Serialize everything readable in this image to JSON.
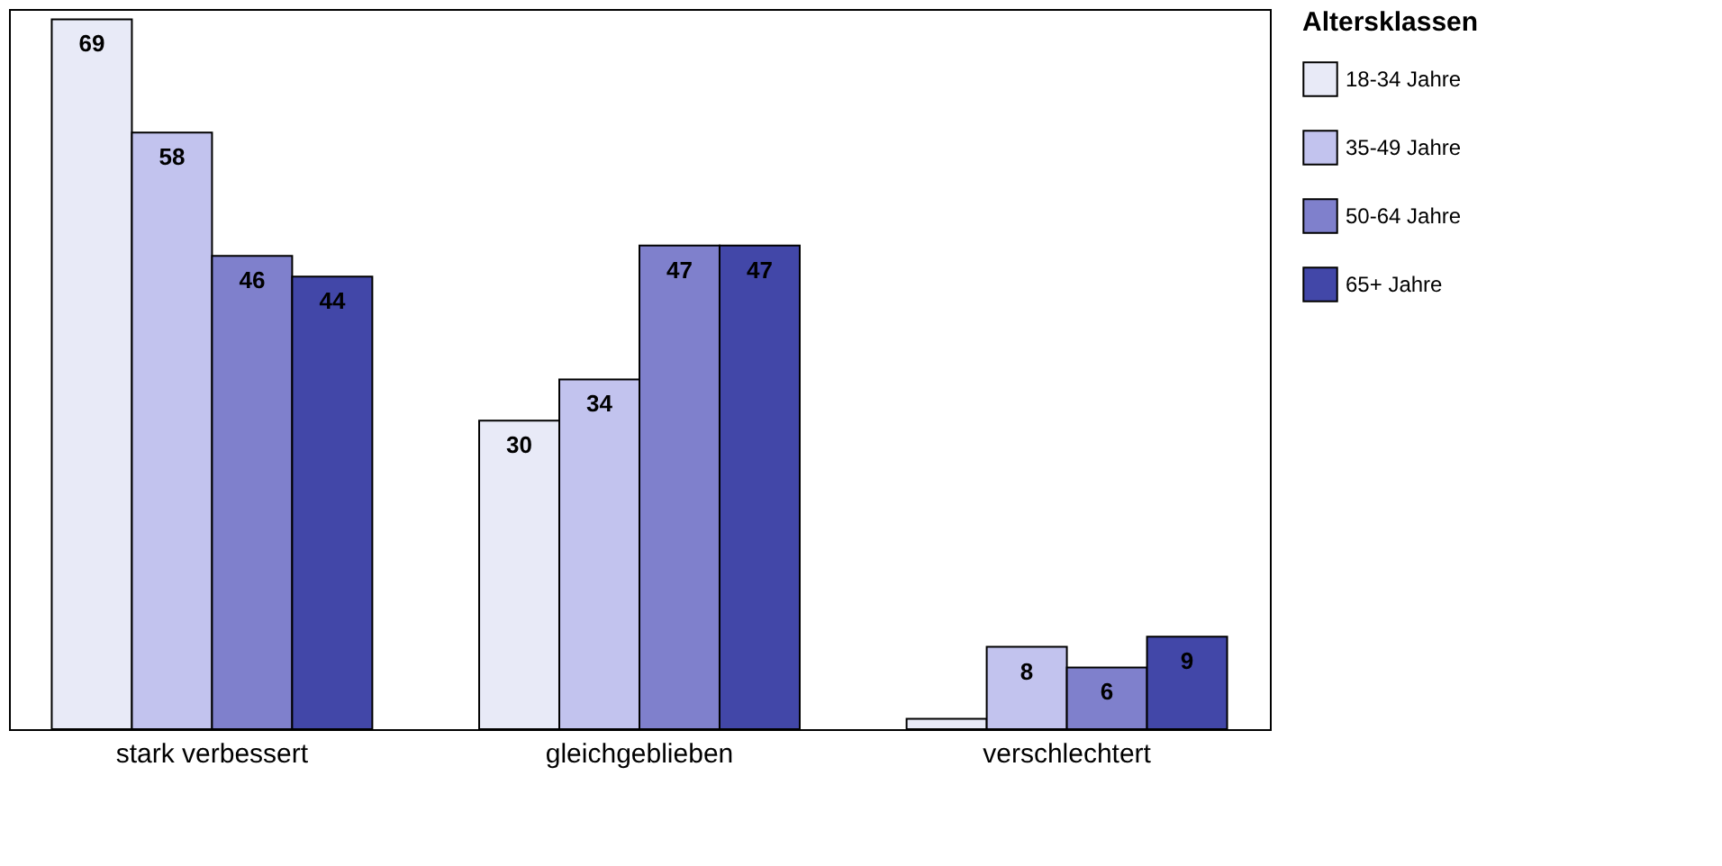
{
  "chart_data": {
    "type": "bar",
    "categories": [
      "stark verbessert",
      "gleichgeblieben",
      "verschlechtert"
    ],
    "legend_title": "Altersklassen",
    "legend": "right",
    "grid": false,
    "series": [
      {
        "name": "18-34 Jahre",
        "color": "#e8eaf7",
        "values": [
          69,
          30,
          1
        ],
        "value_labels": [
          "69",
          "30",
          null
        ]
      },
      {
        "name": "35-49 Jahre",
        "color": "#c2c3ee",
        "values": [
          58,
          34,
          8
        ],
        "value_labels": [
          "58",
          "34",
          "8"
        ]
      },
      {
        "name": "50-64 Jahre",
        "color": "#7f80cc",
        "values": [
          46,
          47,
          6
        ],
        "value_labels": [
          "46",
          "47",
          "6"
        ]
      },
      {
        "name": "65+ Jahre",
        "color": "#4247a8",
        "values": [
          44,
          47,
          9
        ],
        "value_labels": [
          "44",
          "47",
          "9"
        ]
      }
    ]
  }
}
